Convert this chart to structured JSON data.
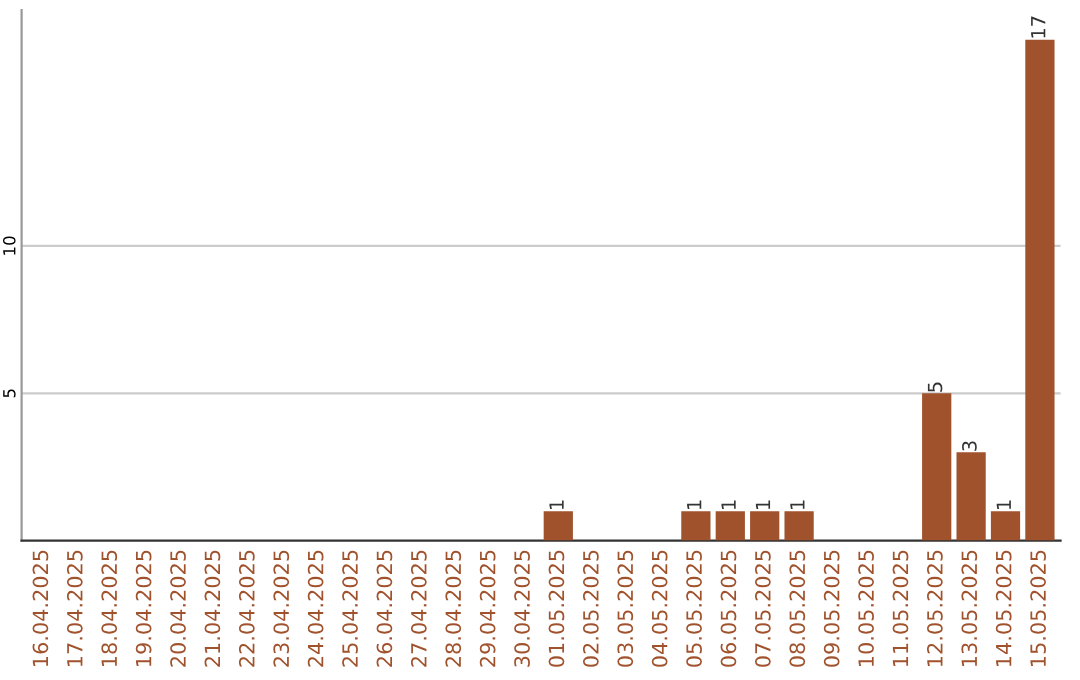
{
  "chart_data": {
    "type": "bar",
    "categories": [
      "16.04.2025",
      "17.04.2025",
      "18.04.2025",
      "19.04.2025",
      "20.04.2025",
      "21.04.2025",
      "22.04.2025",
      "23.04.2025",
      "24.04.2025",
      "25.04.2025",
      "26.04.2025",
      "27.04.2025",
      "28.04.2025",
      "29.04.2025",
      "30.04.2025",
      "01.05.2025",
      "02.05.2025",
      "03.05.2025",
      "04.05.2025",
      "05.05.2025",
      "06.05.2025",
      "07.05.2025",
      "08.05.2025",
      "09.05.2025",
      "10.05.2025",
      "11.05.2025",
      "12.05.2025",
      "13.05.2025",
      "14.05.2025",
      "15.05.2025"
    ],
    "values": [
      0,
      0,
      0,
      0,
      0,
      0,
      0,
      0,
      0,
      0,
      0,
      0,
      0,
      0,
      0,
      1,
      0,
      0,
      0,
      1,
      1,
      1,
      1,
      0,
      0,
      0,
      5,
      3,
      1,
      17
    ],
    "value_labels": [
      null,
      null,
      null,
      null,
      null,
      null,
      null,
      null,
      null,
      null,
      null,
      null,
      null,
      null,
      null,
      "1",
      null,
      null,
      null,
      "1",
      "1",
      "1",
      "1",
      null,
      null,
      null,
      "5",
      "3",
      "1",
      "17"
    ],
    "color": "#a0522d",
    "ylim": [
      0,
      18
    ],
    "yticks": [
      5,
      10
    ],
    "grid": "y"
  }
}
